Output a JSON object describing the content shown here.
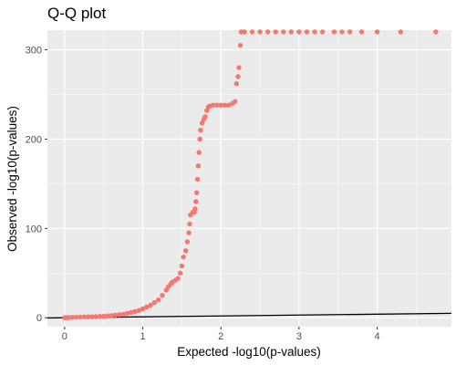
{
  "chart_data": {
    "type": "scatter",
    "title": "Q-Q plot",
    "xlabel": "Expected -log10(p-values)",
    "ylabel": "Observed -log10(p-values)",
    "xlim": [
      -0.22,
      4.95
    ],
    "ylim": [
      -10,
      322
    ],
    "x_ticks": [
      0,
      1,
      2,
      3,
      4
    ],
    "x_tick_labels": [
      "0",
      "1",
      "2",
      "3",
      "4"
    ],
    "y_ticks": [
      0,
      100,
      200,
      300
    ],
    "y_tick_labels": [
      "0",
      "100",
      "200",
      "300"
    ],
    "grid": true,
    "legend": "none",
    "point_color": "#F8766D",
    "line_color": "#000000",
    "panel_color": "#EBEBEB",
    "reference_line": {
      "type": "y=x",
      "x": [
        -0.22,
        4.95
      ],
      "y": [
        -0.22,
        4.95
      ]
    },
    "series": [
      {
        "points": [
          [
            0.0,
            0
          ],
          [
            0.02,
            0.1
          ],
          [
            0.05,
            0.3
          ],
          [
            0.1,
            0.5
          ],
          [
            0.15,
            0.6
          ],
          [
            0.2,
            0.8
          ],
          [
            0.25,
            1
          ],
          [
            0.3,
            1
          ],
          [
            0.35,
            1.2
          ],
          [
            0.4,
            1.3
          ],
          [
            0.45,
            1.5
          ],
          [
            0.5,
            1.7
          ],
          [
            0.55,
            2
          ],
          [
            0.6,
            2.5
          ],
          [
            0.65,
            3
          ],
          [
            0.7,
            3.5
          ],
          [
            0.75,
            4
          ],
          [
            0.8,
            5
          ],
          [
            0.85,
            6
          ],
          [
            0.9,
            7
          ],
          [
            0.95,
            8
          ],
          [
            1.0,
            10
          ],
          [
            1.05,
            12
          ],
          [
            1.1,
            14
          ],
          [
            1.15,
            17
          ],
          [
            1.2,
            20
          ],
          [
            1.25,
            25
          ],
          [
            1.3,
            31
          ],
          [
            1.33,
            35
          ],
          [
            1.36,
            38
          ],
          [
            1.38,
            40
          ],
          [
            1.42,
            42
          ],
          [
            1.45,
            44
          ],
          [
            1.48,
            50
          ],
          [
            1.5,
            58
          ],
          [
            1.52,
            68
          ],
          [
            1.55,
            75
          ],
          [
            1.57,
            85
          ],
          [
            1.59,
            95
          ],
          [
            1.6,
            105
          ],
          [
            1.61,
            115
          ],
          [
            1.64,
            118
          ],
          [
            1.66,
            118
          ],
          [
            1.67,
            122
          ],
          [
            1.68,
            130
          ],
          [
            1.69,
            140
          ],
          [
            1.7,
            155
          ],
          [
            1.71,
            170
          ],
          [
            1.72,
            185
          ],
          [
            1.73,
            200
          ],
          [
            1.74,
            210
          ],
          [
            1.76,
            218
          ],
          [
            1.78,
            222
          ],
          [
            1.8,
            225
          ],
          [
            1.82,
            232
          ],
          [
            1.84,
            236
          ],
          [
            1.86,
            237
          ],
          [
            1.9,
            238
          ],
          [
            1.95,
            238
          ],
          [
            2.0,
            238
          ],
          [
            2.05,
            238
          ],
          [
            2.1,
            238
          ],
          [
            2.15,
            240
          ],
          [
            2.18,
            242
          ],
          [
            2.2,
            262
          ],
          [
            2.22,
            270
          ],
          [
            2.23,
            280
          ],
          [
            2.25,
            305
          ],
          [
            2.26,
            320
          ],
          [
            2.3,
            320
          ],
          [
            2.4,
            320
          ],
          [
            2.5,
            320
          ],
          [
            2.6,
            320
          ],
          [
            2.7,
            320
          ],
          [
            2.8,
            320
          ],
          [
            2.9,
            320
          ],
          [
            3.0,
            320
          ],
          [
            3.1,
            320
          ],
          [
            3.2,
            320
          ],
          [
            3.3,
            320
          ],
          [
            3.45,
            320
          ],
          [
            3.55,
            320
          ],
          [
            3.65,
            320
          ],
          [
            3.8,
            320
          ],
          [
            4.0,
            320
          ],
          [
            4.3,
            320
          ],
          [
            4.75,
            320
          ]
        ]
      }
    ]
  }
}
